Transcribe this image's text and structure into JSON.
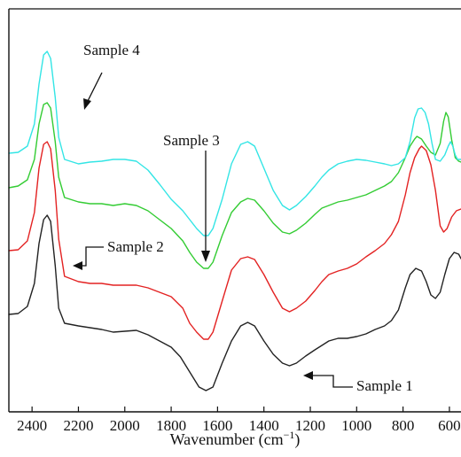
{
  "chart_data": {
    "type": "line",
    "title": "",
    "xlabel": "Wavenumber (cm",
    "xlabel_sup": "−1",
    "xlabel_close": ")",
    "ylabel": "",
    "xlim": [
      2500,
      550
    ],
    "x_reversed": true,
    "grid": false,
    "legend": "none (series labelled by arrow annotations)",
    "x_ticks": [
      {
        "value": 2400,
        "label": "2400"
      },
      {
        "value": 2200,
        "label": "2200"
      },
      {
        "value": 2000,
        "label": "2000"
      },
      {
        "value": 1800,
        "label": "1800"
      },
      {
        "value": 1600,
        "label": "1600"
      },
      {
        "value": 1400,
        "label": "1400"
      },
      {
        "value": 1200,
        "label": "1200"
      },
      {
        "value": 1000,
        "label": "1000"
      },
      {
        "value": 800,
        "label": "800"
      },
      {
        "value": 600,
        "label": "600"
      }
    ],
    "series": [
      {
        "name": "Sample 1",
        "color": "#222222",
        "points": [
          [
            2500,
            355
          ],
          [
            2460,
            354
          ],
          [
            2420,
            346
          ],
          [
            2390,
            320
          ],
          [
            2370,
            275
          ],
          [
            2350,
            248
          ],
          [
            2335,
            243
          ],
          [
            2320,
            250
          ],
          [
            2300,
            300
          ],
          [
            2285,
            348
          ],
          [
            2260,
            365
          ],
          [
            2200,
            368
          ],
          [
            2150,
            370
          ],
          [
            2100,
            372
          ],
          [
            2050,
            375
          ],
          [
            2000,
            374
          ],
          [
            1950,
            373
          ],
          [
            1900,
            378
          ],
          [
            1850,
            385
          ],
          [
            1800,
            392
          ],
          [
            1760,
            403
          ],
          [
            1720,
            420
          ],
          [
            1680,
            437
          ],
          [
            1650,
            441
          ],
          [
            1620,
            437
          ],
          [
            1580,
            410
          ],
          [
            1540,
            385
          ],
          [
            1500,
            368
          ],
          [
            1470,
            364
          ],
          [
            1440,
            368
          ],
          [
            1400,
            385
          ],
          [
            1360,
            400
          ],
          [
            1320,
            410
          ],
          [
            1290,
            413
          ],
          [
            1260,
            410
          ],
          [
            1220,
            402
          ],
          [
            1180,
            395
          ],
          [
            1150,
            390
          ],
          [
            1120,
            385
          ],
          [
            1080,
            382
          ],
          [
            1040,
            382
          ],
          [
            1000,
            380
          ],
          [
            960,
            377
          ],
          [
            920,
            372
          ],
          [
            880,
            368
          ],
          [
            850,
            362
          ],
          [
            820,
            350
          ],
          [
            790,
            325
          ],
          [
            770,
            310
          ],
          [
            745,
            303
          ],
          [
            720,
            306
          ],
          [
            700,
            318
          ],
          [
            680,
            333
          ],
          [
            660,
            337
          ],
          [
            640,
            330
          ],
          [
            620,
            310
          ],
          [
            600,
            292
          ],
          [
            580,
            285
          ],
          [
            560,
            287
          ],
          [
            550,
            292
          ]
        ]
      },
      {
        "name": "Sample 2",
        "color": "#e32222",
        "points": [
          [
            2500,
            283
          ],
          [
            2460,
            282
          ],
          [
            2420,
            272
          ],
          [
            2390,
            240
          ],
          [
            2370,
            190
          ],
          [
            2350,
            163
          ],
          [
            2335,
            160
          ],
          [
            2320,
            168
          ],
          [
            2300,
            215
          ],
          [
            2285,
            270
          ],
          [
            2260,
            312
          ],
          [
            2200,
            318
          ],
          [
            2150,
            320
          ],
          [
            2100,
            320
          ],
          [
            2050,
            322
          ],
          [
            2000,
            322
          ],
          [
            1950,
            322
          ],
          [
            1900,
            325
          ],
          [
            1850,
            330
          ],
          [
            1800,
            335
          ],
          [
            1750,
            348
          ],
          [
            1720,
            365
          ],
          [
            1690,
            375
          ],
          [
            1660,
            383
          ],
          [
            1640,
            383
          ],
          [
            1620,
            375
          ],
          [
            1580,
            340
          ],
          [
            1540,
            305
          ],
          [
            1500,
            292
          ],
          [
            1470,
            290
          ],
          [
            1440,
            293
          ],
          [
            1400,
            310
          ],
          [
            1360,
            330
          ],
          [
            1320,
            348
          ],
          [
            1290,
            352
          ],
          [
            1260,
            348
          ],
          [
            1220,
            340
          ],
          [
            1180,
            328
          ],
          [
            1150,
            318
          ],
          [
            1120,
            310
          ],
          [
            1080,
            306
          ],
          [
            1040,
            303
          ],
          [
            1000,
            298
          ],
          [
            960,
            290
          ],
          [
            920,
            283
          ],
          [
            880,
            275
          ],
          [
            850,
            265
          ],
          [
            820,
            250
          ],
          [
            790,
            220
          ],
          [
            770,
            195
          ],
          [
            750,
            178
          ],
          [
            730,
            168
          ],
          [
            720,
            165
          ],
          [
            700,
            170
          ],
          [
            680,
            186
          ],
          [
            660,
            215
          ],
          [
            640,
            255
          ],
          [
            625,
            262
          ],
          [
            610,
            258
          ],
          [
            590,
            245
          ],
          [
            570,
            238
          ],
          [
            550,
            236
          ]
        ]
      },
      {
        "name": "Sample 3",
        "color": "#33cc33",
        "points": [
          [
            2500,
            212
          ],
          [
            2460,
            210
          ],
          [
            2420,
            203
          ],
          [
            2390,
            180
          ],
          [
            2370,
            140
          ],
          [
            2350,
            118
          ],
          [
            2335,
            116
          ],
          [
            2320,
            122
          ],
          [
            2300,
            160
          ],
          [
            2285,
            200
          ],
          [
            2260,
            223
          ],
          [
            2200,
            228
          ],
          [
            2150,
            230
          ],
          [
            2100,
            230
          ],
          [
            2050,
            232
          ],
          [
            2000,
            230
          ],
          [
            1950,
            232
          ],
          [
            1900,
            238
          ],
          [
            1850,
            248
          ],
          [
            1800,
            258
          ],
          [
            1750,
            272
          ],
          [
            1720,
            285
          ],
          [
            1690,
            296
          ],
          [
            1660,
            303
          ],
          [
            1640,
            303
          ],
          [
            1620,
            296
          ],
          [
            1580,
            266
          ],
          [
            1540,
            240
          ],
          [
            1500,
            228
          ],
          [
            1470,
            224
          ],
          [
            1440,
            226
          ],
          [
            1400,
            238
          ],
          [
            1360,
            252
          ],
          [
            1320,
            262
          ],
          [
            1290,
            264
          ],
          [
            1260,
            260
          ],
          [
            1220,
            252
          ],
          [
            1180,
            242
          ],
          [
            1150,
            235
          ],
          [
            1120,
            232
          ],
          [
            1080,
            228
          ],
          [
            1040,
            226
          ],
          [
            1000,
            223
          ],
          [
            960,
            220
          ],
          [
            920,
            215
          ],
          [
            880,
            210
          ],
          [
            850,
            205
          ],
          [
            820,
            195
          ],
          [
            790,
            178
          ],
          [
            770,
            165
          ],
          [
            750,
            157
          ],
          [
            740,
            154
          ],
          [
            720,
            157
          ],
          [
            700,
            165
          ],
          [
            680,
            172
          ],
          [
            660,
            175
          ],
          [
            640,
            162
          ],
          [
            625,
            137
          ],
          [
            615,
            127
          ],
          [
            605,
            132
          ],
          [
            590,
            158
          ],
          [
            575,
            178
          ],
          [
            560,
            182
          ],
          [
            550,
            183
          ]
        ]
      },
      {
        "name": "Sample 4",
        "color": "#33e5e5",
        "points": [
          [
            2500,
            173
          ],
          [
            2460,
            172
          ],
          [
            2420,
            165
          ],
          [
            2390,
            140
          ],
          [
            2370,
            95
          ],
          [
            2350,
            62
          ],
          [
            2335,
            58
          ],
          [
            2320,
            66
          ],
          [
            2300,
            110
          ],
          [
            2285,
            155
          ],
          [
            2260,
            180
          ],
          [
            2200,
            185
          ],
          [
            2150,
            183
          ],
          [
            2100,
            182
          ],
          [
            2050,
            180
          ],
          [
            2000,
            180
          ],
          [
            1950,
            182
          ],
          [
            1900,
            192
          ],
          [
            1850,
            208
          ],
          [
            1800,
            225
          ],
          [
            1750,
            238
          ],
          [
            1720,
            248
          ],
          [
            1690,
            258
          ],
          [
            1660,
            266
          ],
          [
            1640,
            266
          ],
          [
            1620,
            258
          ],
          [
            1580,
            225
          ],
          [
            1540,
            185
          ],
          [
            1500,
            163
          ],
          [
            1470,
            160
          ],
          [
            1440,
            165
          ],
          [
            1400,
            190
          ],
          [
            1360,
            215
          ],
          [
            1320,
            232
          ],
          [
            1290,
            237
          ],
          [
            1260,
            232
          ],
          [
            1220,
            222
          ],
          [
            1180,
            210
          ],
          [
            1150,
            200
          ],
          [
            1120,
            192
          ],
          [
            1080,
            185
          ],
          [
            1040,
            182
          ],
          [
            1000,
            180
          ],
          [
            960,
            181
          ],
          [
            920,
            183
          ],
          [
            880,
            185
          ],
          [
            850,
            187
          ],
          [
            820,
            185
          ],
          [
            790,
            178
          ],
          [
            770,
            160
          ],
          [
            750,
            133
          ],
          [
            735,
            123
          ],
          [
            720,
            122
          ],
          [
            705,
            127
          ],
          [
            690,
            140
          ],
          [
            675,
            162
          ],
          [
            660,
            180
          ],
          [
            640,
            182
          ],
          [
            620,
            175
          ],
          [
            605,
            165
          ],
          [
            595,
            160
          ],
          [
            585,
            165
          ],
          [
            575,
            175
          ],
          [
            565,
            180
          ],
          [
            550,
            180
          ]
        ]
      }
    ],
    "annotations": [
      {
        "text": "Sample 4",
        "series": "Sample 4"
      },
      {
        "text": "Sample 3",
        "series": "Sample 3"
      },
      {
        "text": "Sample 2",
        "series": "Sample 2"
      },
      {
        "text": "Sample 1",
        "series": "Sample 1"
      }
    ]
  }
}
